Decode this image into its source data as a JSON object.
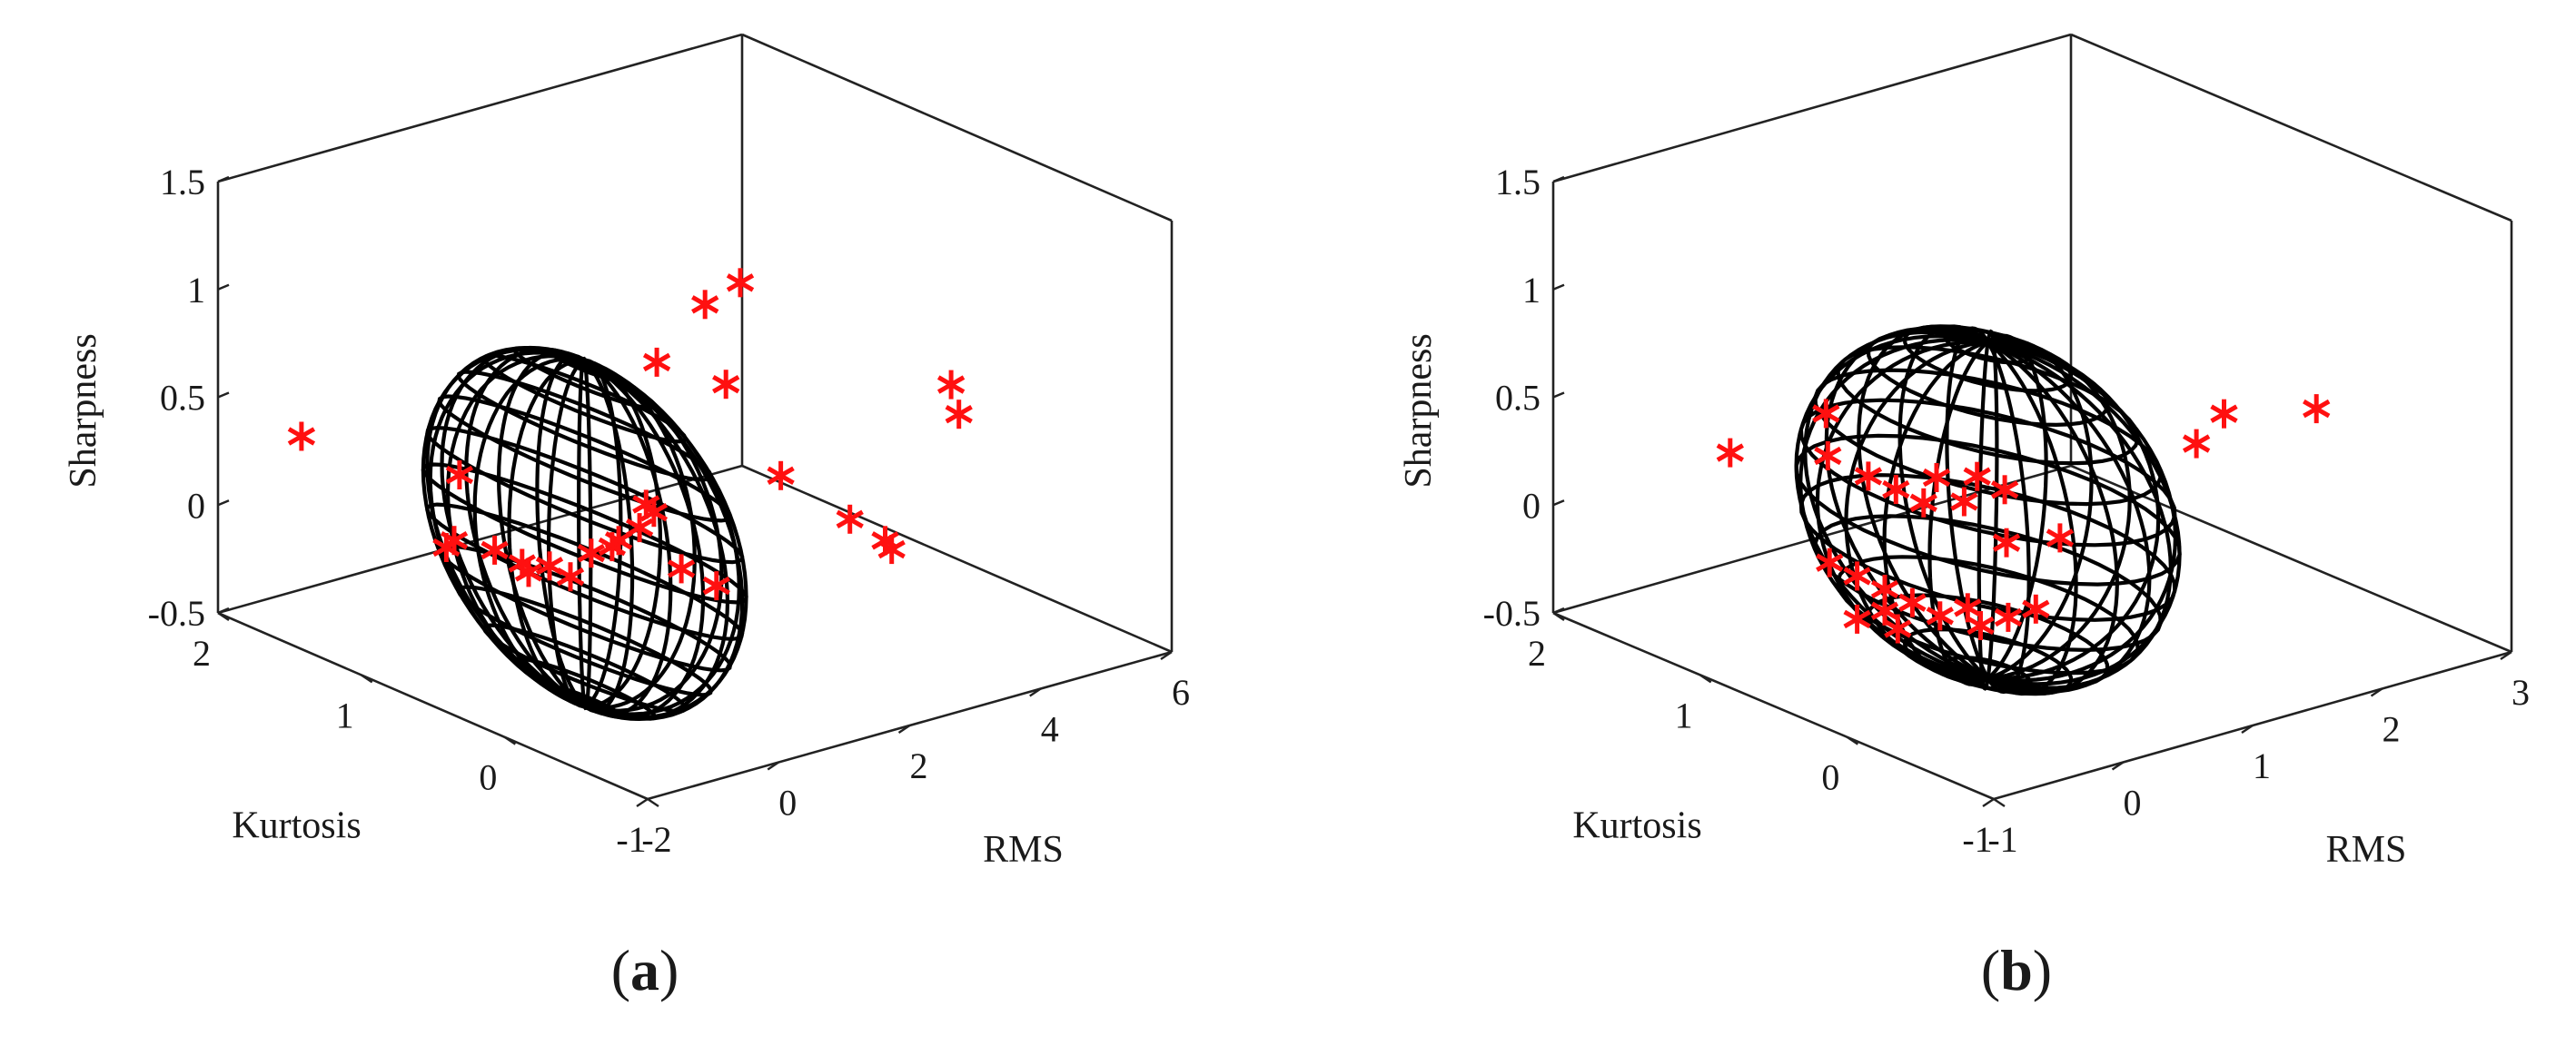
{
  "chart_data": [
    {
      "type": "scatter",
      "panel_label": "a",
      "title": "",
      "xlabel": "RMS",
      "ylabel": "Kurtosis",
      "zlabel": "Sharpness",
      "xlim": [
        -2,
        6
      ],
      "ylim": [
        -1,
        2
      ],
      "zlim": [
        -0.5,
        1.5
      ],
      "xticks": [
        "-2",
        "0",
        "2",
        "4",
        "6"
      ],
      "yticks": [
        "-1",
        "0",
        "1",
        "2"
      ],
      "zticks": [
        "-0.5",
        "0",
        "0.5",
        "1",
        "1.5"
      ],
      "marker": "*",
      "marker_color": "#ff0000",
      "wireframe_color": "#000000",
      "grid": false,
      "ellipsoid": {
        "center": [
          0.1,
          0.4,
          0.15
        ],
        "radii": [
          0.55,
          1.1,
          0.8
        ]
      },
      "points": [
        [
          -1.6,
          1.6,
          0.4
        ],
        [
          -0.5,
          1.0,
          0.3
        ],
        [
          -0.8,
          0.9,
          0.05
        ],
        [
          -0.7,
          1.0,
          -0.02
        ],
        [
          -0.4,
          0.8,
          0.0
        ],
        [
          -0.2,
          0.7,
          -0.05
        ],
        [
          -0.1,
          0.7,
          -0.1
        ],
        [
          0.0,
          0.6,
          -0.05
        ],
        [
          0.1,
          0.5,
          -0.08
        ],
        [
          0.2,
          0.4,
          0.05
        ],
        [
          0.3,
          0.3,
          0.1
        ],
        [
          0.4,
          0.3,
          0.12
        ],
        [
          0.5,
          0.2,
          0.2
        ],
        [
          0.6,
          0.2,
          0.3
        ],
        [
          0.5,
          0.1,
          0.3
        ],
        [
          0.7,
          0.0,
          0.05
        ],
        [
          0.8,
          -0.2,
          0.02
        ],
        [
          1.5,
          0.2,
          1.15
        ],
        [
          1.6,
          0.0,
          1.3
        ],
        [
          1.2,
          0.4,
          0.85
        ],
        [
          1.6,
          0.1,
          0.8
        ],
        [
          2.0,
          -0.1,
          0.4
        ],
        [
          2.4,
          -0.4,
          0.25
        ],
        [
          2.5,
          -0.6,
          0.2
        ],
        [
          2.6,
          -0.6,
          0.15
        ],
        [
          4.6,
          -0.1,
          0.6
        ],
        [
          4.5,
          -0.2,
          0.5
        ]
      ]
    },
    {
      "type": "scatter",
      "panel_label": "b",
      "title": "",
      "xlabel": "RMS",
      "ylabel": "Kurtosis",
      "zlabel": "Sharpness",
      "xlim": [
        -1,
        3
      ],
      "ylim": [
        -1,
        2
      ],
      "zlim": [
        -0.5,
        1.5
      ],
      "xticks": [
        "-1",
        "0",
        "1",
        "2",
        "3"
      ],
      "yticks": [
        "-1",
        "0",
        "1",
        "2"
      ],
      "zticks": [
        "-0.5",
        "0",
        "0.5",
        "1",
        "1.5"
      ],
      "marker": "*",
      "marker_color": "#ff0000",
      "wireframe_color": "#000000",
      "grid": false,
      "ellipsoid": {
        "center": [
          0.6,
          0.45,
          0.15
        ],
        "radii": [
          0.8,
          1.1,
          0.78
        ]
      },
      "points": [
        [
          -0.2,
          1.5,
          0.25
        ],
        [
          0.2,
          1.2,
          0.45
        ],
        [
          0.1,
          1.1,
          0.3
        ],
        [
          0.3,
          1.0,
          0.2
        ],
        [
          0.4,
          0.9,
          0.15
        ],
        [
          0.5,
          0.8,
          0.1
        ],
        [
          0.6,
          0.8,
          0.2
        ],
        [
          0.7,
          0.7,
          0.1
        ],
        [
          0.8,
          0.7,
          0.2
        ],
        [
          0.9,
          0.6,
          0.15
        ],
        [
          0.8,
          0.5,
          -0.05
        ],
        [
          1.1,
          0.4,
          -0.05
        ],
        [
          0.0,
          1.0,
          -0.15
        ],
        [
          0.1,
          0.9,
          -0.2
        ],
        [
          0.2,
          0.8,
          -0.25
        ],
        [
          0.3,
          0.7,
          -0.3
        ],
        [
          0.2,
          0.8,
          -0.35
        ],
        [
          0.4,
          0.6,
          -0.35
        ],
        [
          0.5,
          0.5,
          -0.3
        ],
        [
          0.6,
          0.5,
          -0.4
        ],
        [
          0.7,
          0.4,
          -0.35
        ],
        [
          0.1,
          0.9,
          -0.4
        ],
        [
          0.3,
          0.8,
          -0.45
        ],
        [
          0.8,
          0.3,
          -0.3
        ],
        [
          1.8,
          -0.1,
          0.55
        ],
        [
          1.7,
          0.0,
          0.4
        ],
        [
          2.4,
          -0.2,
          0.5
        ]
      ]
    }
  ]
}
